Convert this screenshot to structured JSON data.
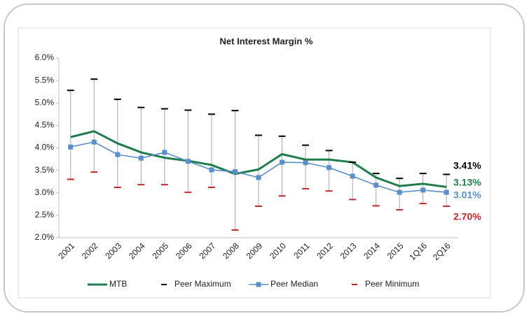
{
  "chart_data": {
    "type": "line",
    "title": "Net Interest Margin %",
    "categories": [
      "2001",
      "2002",
      "2003",
      "2004",
      "2005",
      "2006",
      "2007",
      "2008",
      "2009",
      "2010",
      "2011",
      "2012",
      "2013",
      "2014",
      "2015",
      "1Q16",
      "2Q16"
    ],
    "ylim": [
      2.0,
      6.0
    ],
    "yticks": [
      {
        "value": 2.0,
        "label": "2.0%"
      },
      {
        "value": 2.5,
        "label": "2.5%"
      },
      {
        "value": 3.0,
        "label": "3.0%"
      },
      {
        "value": 3.5,
        "label": "3.5%"
      },
      {
        "value": 4.0,
        "label": "4.0%"
      },
      {
        "value": 4.5,
        "label": "4.5%"
      },
      {
        "value": 5.0,
        "label": "5.0%"
      },
      {
        "value": 5.5,
        "label": "5.5%"
      },
      {
        "value": 6.0,
        "label": "6.0%"
      }
    ],
    "series": [
      {
        "name": "MTB",
        "color": "#1e7d4a",
        "style": "line",
        "values": [
          4.24,
          4.37,
          4.1,
          3.9,
          3.78,
          3.71,
          3.62,
          3.42,
          3.52,
          3.86,
          3.74,
          3.74,
          3.68,
          3.34,
          3.15,
          3.2,
          3.13
        ],
        "value_labels": [
          null,
          null,
          null,
          null,
          null,
          null,
          null,
          null,
          null,
          null,
          null,
          null,
          null,
          null,
          null,
          null,
          "3.13%"
        ]
      },
      {
        "name": "Peer Maximum",
        "color": "#000000",
        "style": "dash",
        "values": [
          5.28,
          5.53,
          5.08,
          4.9,
          4.87,
          4.84,
          4.75,
          4.83,
          4.28,
          4.26,
          4.06,
          3.94,
          3.68,
          3.43,
          3.32,
          3.43,
          3.41
        ],
        "value_labels": [
          null,
          null,
          null,
          null,
          null,
          null,
          null,
          null,
          null,
          null,
          null,
          null,
          null,
          null,
          null,
          null,
          "3.41%"
        ]
      },
      {
        "name": "Peer Median",
        "color": "#5b8fcc",
        "style": "line-square",
        "values": [
          4.02,
          4.13,
          3.85,
          3.77,
          3.9,
          3.7,
          3.51,
          3.47,
          3.34,
          3.68,
          3.67,
          3.56,
          3.37,
          3.17,
          3.01,
          3.06,
          3.01
        ],
        "value_labels": [
          null,
          null,
          null,
          null,
          null,
          null,
          null,
          null,
          null,
          null,
          null,
          null,
          null,
          null,
          null,
          null,
          "3.01%"
        ]
      },
      {
        "name": "Peer Minimum",
        "color": "#c0282d",
        "style": "dash",
        "values": [
          3.3,
          3.46,
          3.12,
          3.18,
          3.18,
          3.01,
          3.12,
          2.17,
          2.7,
          2.93,
          3.09,
          3.04,
          2.85,
          2.71,
          2.62,
          2.76,
          2.7
        ],
        "value_labels": [
          null,
          null,
          null,
          null,
          null,
          null,
          null,
          null,
          null,
          null,
          null,
          null,
          null,
          null,
          null,
          null,
          "2.70%"
        ]
      }
    ]
  }
}
